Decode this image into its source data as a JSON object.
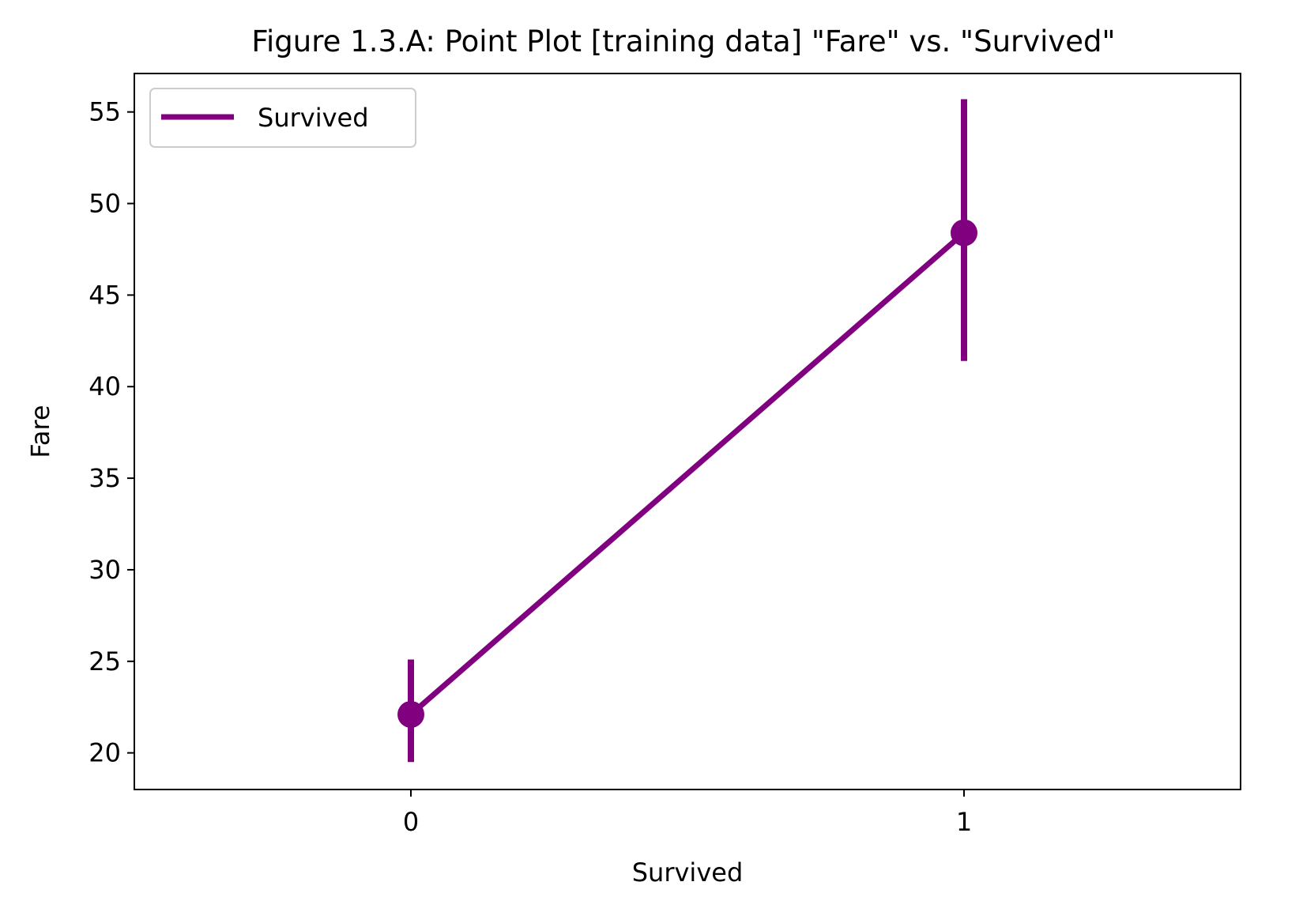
{
  "chart_data": {
    "type": "line",
    "title": "Figure 1.3.A:  Point Plot [training data] \"Fare\" vs. \"Survived\"",
    "xlabel": "Survived",
    "ylabel": "Fare",
    "categories": [
      "0",
      "1"
    ],
    "ylim": [
      18,
      57.1
    ],
    "yticks": [
      20,
      25,
      30,
      35,
      40,
      45,
      50,
      55
    ],
    "series": [
      {
        "name": "Survived",
        "values": [
          22.1,
          48.4
        ],
        "ci_low": [
          19.5,
          41.4
        ],
        "ci_high": [
          25.1,
          55.7
        ]
      }
    ],
    "legend": {
      "placement": "upper-left",
      "labels": [
        "Survived"
      ]
    },
    "grid": false,
    "colors": {
      "series": "#800080",
      "axes": "#000000",
      "legend_border": "#cccccc"
    }
  }
}
